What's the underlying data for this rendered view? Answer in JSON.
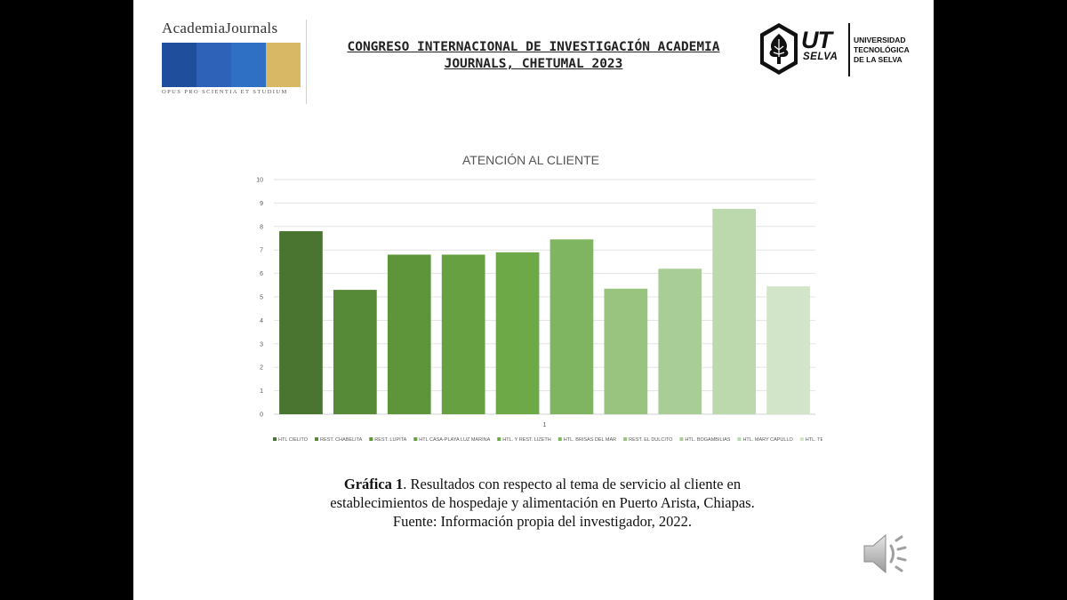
{
  "header": {
    "logo_left": {
      "title": "AcademiaJournals",
      "motto": "OPUS PRO SCIENTIA ET STUDIUM",
      "bar_colors": [
        "#1f4e9c",
        "#2d62b8",
        "#2f6fc4",
        "#d9b865"
      ]
    },
    "congress_line1": "CONGRESO INTERNACIONAL DE INVESTIGACIÓN ACADEMIA",
    "congress_line2": "JOURNALS, CHETUMAL 2023",
    "logo_right": {
      "mark": "UT",
      "sub": "SELVA",
      "name_line1": "UNIVERSIDAD",
      "name_line2": "TECNOLÓGICA",
      "name_line3": "DE LA SELVA"
    }
  },
  "chart_data": {
    "type": "bar",
    "title": "ATENCIÓN AL CLIENTE",
    "categories": [
      "1"
    ],
    "ylim": [
      0,
      10
    ],
    "yticks": [
      0,
      1,
      2,
      3,
      4,
      5,
      6,
      7,
      8,
      9,
      10
    ],
    "grid": true,
    "legend_position": "bottom",
    "series": [
      {
        "name": "HTL CIELITO",
        "values": [
          7.8
        ],
        "color": "#4a7530"
      },
      {
        "name": "REST. CHABELITA",
        "values": [
          5.3
        ],
        "color": "#568a37"
      },
      {
        "name": "REST. LUPITA",
        "values": [
          6.8
        ],
        "color": "#5e953b"
      },
      {
        "name": "HTL CASA-PLAYA LUZ MARINA",
        "values": [
          6.8
        ],
        "color": "#66a040"
      },
      {
        "name": "HTL. Y REST. LIZETH",
        "values": [
          6.9
        ],
        "color": "#6ea947"
      },
      {
        "name": "HTL. BRISAS DEL MAR",
        "values": [
          7.45
        ],
        "color": "#7fb460"
      },
      {
        "name": "REST. EL DULCITO",
        "values": [
          5.35
        ],
        "color": "#98c480"
      },
      {
        "name": "HTL. BOGAMBILIAS",
        "values": [
          6.2
        ],
        "color": "#a9cd96"
      },
      {
        "name": "HTL. MARY CAPULLO",
        "values": [
          8.75
        ],
        "color": "#bcd9ad"
      },
      {
        "name": "HTL. TEVIN",
        "values": [
          5.45
        ],
        "color": "#d3e5c9"
      }
    ]
  },
  "caption": {
    "label": "Gráfica 1",
    "line1_rest": ". Resultados con respecto al tema de servicio al cliente en",
    "line2": "establecimientos de hospedaje y alimentación en Puerto Arista, Chiapas.",
    "line3": "Fuente: Información propia del investigador, 2022."
  },
  "audio": {
    "icon": "speaker-icon"
  }
}
